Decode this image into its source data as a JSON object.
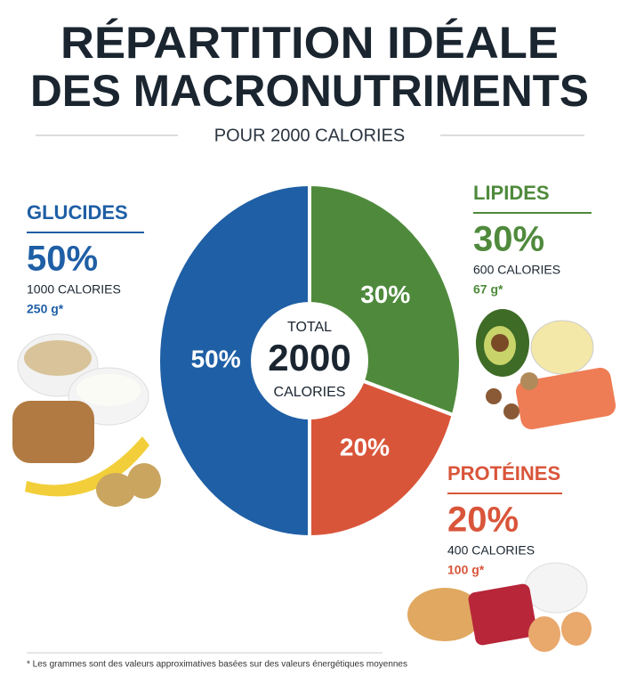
{
  "chart_data": {
    "type": "pie",
    "title": [
      "RÉPARTITION IDÉALE",
      "DES MACRONUTRIMENTS"
    ],
    "subtitle": "POUR 2000 CALORIES",
    "center_text": [
      "TOTAL",
      "2000",
      "CALORIES"
    ],
    "categories": [
      "LIPIDES",
      "PROTÉINES",
      "GLUCIDES"
    ],
    "values": [
      30,
      20,
      50
    ],
    "value_labels": [
      "30%",
      "20%",
      "50%"
    ],
    "colors": [
      "#4f8a3c",
      "#d9553a",
      "#1f5fa5"
    ],
    "calories_labels": [
      "600 CALORIES",
      "400 CALORIES",
      "1000 CALORIES"
    ],
    "grams_labels": [
      "67 g*",
      "100 g*",
      "250 g*"
    ],
    "footnote": "* Les grammes sont des valeurs approximatives basées sur des valeurs énergétiques moyennes"
  }
}
